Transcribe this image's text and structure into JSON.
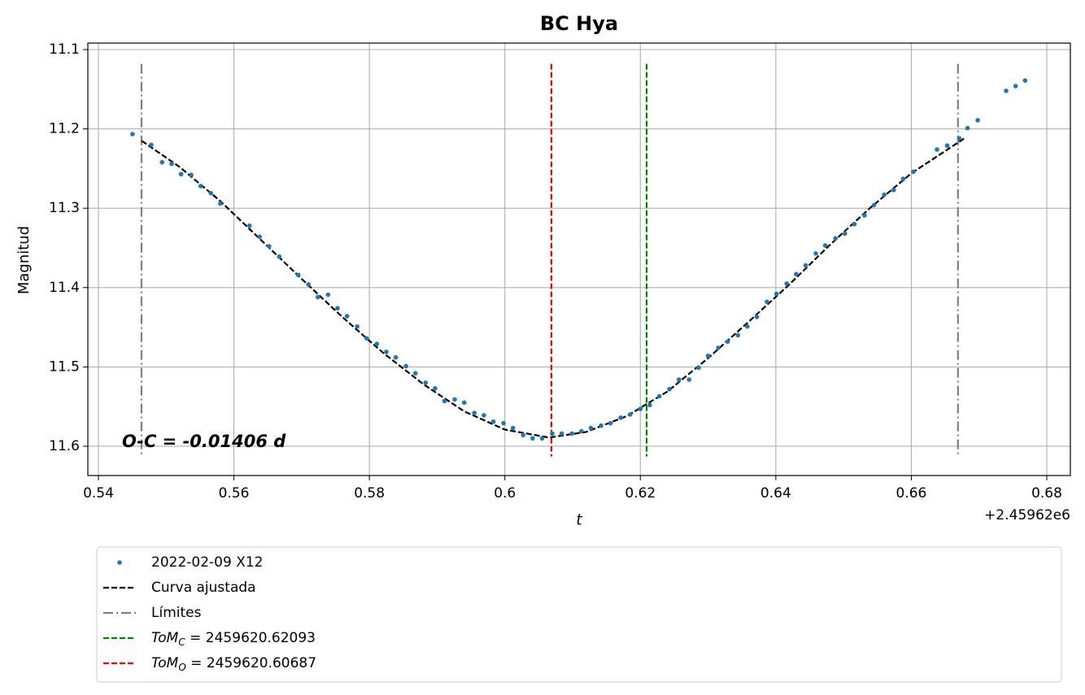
{
  "chart_data": {
    "type": "scatter",
    "title": "BC Hya",
    "xlabel": "t",
    "ylabel": "Magnitud",
    "x_offset_text": "+2.45962e6",
    "annotation": "O-C = -0.01406 d",
    "xlim": [
      0.53844,
      0.68348
    ],
    "ylim": [
      11.6369,
      11.0918
    ],
    "y_inverted": true,
    "xticks": [
      0.54,
      0.56,
      0.58,
      0.6,
      0.62,
      0.64,
      0.66,
      0.68
    ],
    "yticks": [
      11.1,
      11.2,
      11.3,
      11.4,
      11.5,
      11.6
    ],
    "grid": true,
    "legend": "below",
    "series": [
      {
        "name": "2022-02-09 X12",
        "color": "#1f77b4",
        "style": "points",
        "x": [
          0.54504,
          0.5478,
          0.5494,
          0.5508,
          0.5522,
          0.5537,
          0.5551,
          0.5566,
          0.558,
          0.5623,
          0.5638,
          0.5652,
          0.5667,
          0.5695,
          0.571,
          0.5724,
          0.5739,
          0.5753,
          0.5767,
          0.5782,
          0.5796,
          0.5811,
          0.5825,
          0.5839,
          0.5854,
          0.5868,
          0.5883,
          0.5897,
          0.5911,
          0.5926,
          0.594,
          0.5955,
          0.5969,
          0.5983,
          0.5998,
          0.6012,
          0.6027,
          0.6041,
          0.6055,
          0.607,
          0.6084,
          0.6099,
          0.6113,
          0.6127,
          0.6142,
          0.6156,
          0.6171,
          0.6185,
          0.62,
          0.6214,
          0.6228,
          0.6243,
          0.6257,
          0.6272,
          0.6286,
          0.63,
          0.6315,
          0.6329,
          0.6344,
          0.6358,
          0.6372,
          0.6387,
          0.6401,
          0.6416,
          0.643,
          0.6444,
          0.6459,
          0.6473,
          0.6488,
          0.6502,
          0.6516,
          0.6531,
          0.6545,
          0.656,
          0.6574,
          0.6588,
          0.6603,
          0.6638,
          0.6653,
          0.6671,
          0.6683,
          0.6698,
          0.674,
          0.6754,
          0.6768
        ],
        "values": [
          11.2066,
          11.22,
          11.242,
          11.244,
          11.257,
          11.258,
          11.272,
          11.281,
          11.294,
          11.322,
          11.336,
          11.348,
          11.361,
          11.384,
          11.396,
          11.412,
          11.409,
          11.426,
          11.436,
          11.449,
          11.464,
          11.471,
          11.481,
          11.488,
          11.499,
          11.508,
          11.52,
          11.527,
          11.543,
          11.541,
          11.545,
          11.558,
          11.561,
          11.569,
          11.571,
          11.577,
          11.586,
          11.59,
          11.59,
          11.584,
          11.584,
          11.584,
          11.581,
          11.577,
          11.574,
          11.571,
          11.564,
          11.56,
          11.553,
          11.548,
          11.537,
          11.528,
          11.516,
          11.516,
          11.501,
          11.486,
          11.476,
          11.468,
          11.46,
          11.449,
          11.437,
          11.418,
          11.408,
          11.395,
          11.383,
          11.372,
          11.357,
          11.347,
          11.338,
          11.332,
          11.32,
          11.309,
          11.296,
          11.283,
          11.277,
          11.263,
          11.254,
          11.226,
          11.221,
          11.212,
          11.199,
          11.189,
          11.152,
          11.146,
          11.139
        ]
      },
      {
        "name": "Curva ajustada",
        "color": "#000000",
        "style": "dashed",
        "x": [
          0.5464,
          0.552,
          0.558,
          0.564,
          0.57,
          0.576,
          0.582,
          0.588,
          0.594,
          0.6,
          0.6065,
          0.612,
          0.618,
          0.624,
          0.63,
          0.636,
          0.642,
          0.648,
          0.654,
          0.66,
          0.668
        ],
        "values": [
          11.215,
          11.248,
          11.291,
          11.34,
          11.389,
          11.437,
          11.482,
          11.522,
          11.556,
          11.579,
          11.589,
          11.582,
          11.562,
          11.531,
          11.489,
          11.443,
          11.396,
          11.346,
          11.299,
          11.256,
          11.211
        ]
      },
      {
        "name": "Límites",
        "color": "#808080",
        "style": "dashdot",
        "vertical": true,
        "x": [
          0.54636,
          0.66689
        ],
        "span": [
          11.118,
          11.613
        ]
      },
      {
        "name": "ToM",
        "subscript": "C",
        "name_suffix": " = 2459620.62093",
        "color": "#008000",
        "style": "dashed",
        "vertical": true,
        "x": [
          0.62093
        ],
        "span": [
          11.118,
          11.613
        ]
      },
      {
        "name": "ToM",
        "subscript": "O",
        "name_suffix": " = 2459620.60687",
        "color": "#ff0000",
        "style": "dashed",
        "vertical": true,
        "x": [
          0.60687
        ],
        "span": [
          11.118,
          11.613
        ]
      }
    ]
  }
}
